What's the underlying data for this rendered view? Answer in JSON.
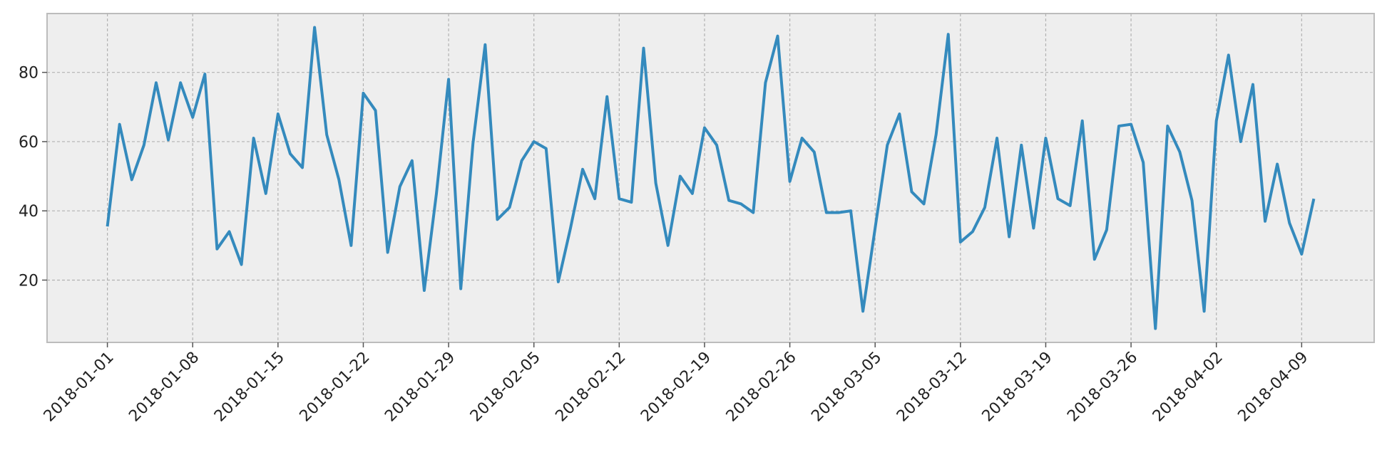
{
  "chart_data": {
    "type": "line",
    "title": "",
    "xlabel": "",
    "ylabel": "",
    "x_start": "2018-01-01",
    "x_end": "2018-04-10",
    "x_ticks": [
      "2018-01-01",
      "2018-01-08",
      "2018-01-15",
      "2018-01-22",
      "2018-01-29",
      "2018-02-05",
      "2018-02-12",
      "2018-02-19",
      "2018-02-26",
      "2018-03-05",
      "2018-03-12",
      "2018-03-19",
      "2018-03-26",
      "2018-04-02",
      "2018-04-09"
    ],
    "y_ticks": [
      20,
      40,
      60,
      80
    ],
    "ylim": [
      2,
      97
    ],
    "grid": true,
    "series": [
      {
        "color": "#348abd",
        "values": [
          35.5,
          65,
          49,
          59,
          77,
          60.5,
          77,
          67,
          79.5,
          29,
          34,
          24.5,
          61,
          45,
          68,
          56.5,
          52.5,
          93,
          62,
          49,
          30,
          74,
          69,
          28,
          47,
          54.5,
          17,
          45,
          78,
          17.5,
          59.5,
          88,
          37.5,
          41,
          54.5,
          60,
          58,
          19.5,
          35,
          52,
          43.5,
          73,
          43.5,
          42.5,
          87,
          48,
          30,
          50,
          45,
          64,
          59,
          43,
          42,
          39.5,
          77,
          90.5,
          48.5,
          61,
          57,
          39.5,
          39.5,
          40,
          11,
          35,
          59,
          68,
          45.5,
          42,
          62,
          91,
          31,
          34,
          41,
          61,
          32.5,
          59,
          35,
          61,
          43.5,
          41.5,
          66,
          26,
          34.5,
          64.5,
          65,
          54,
          6,
          64.5,
          57,
          43,
          11,
          66,
          85,
          60,
          76.5,
          37,
          53.5,
          36.5,
          27.5,
          43.5
        ]
      }
    ]
  }
}
